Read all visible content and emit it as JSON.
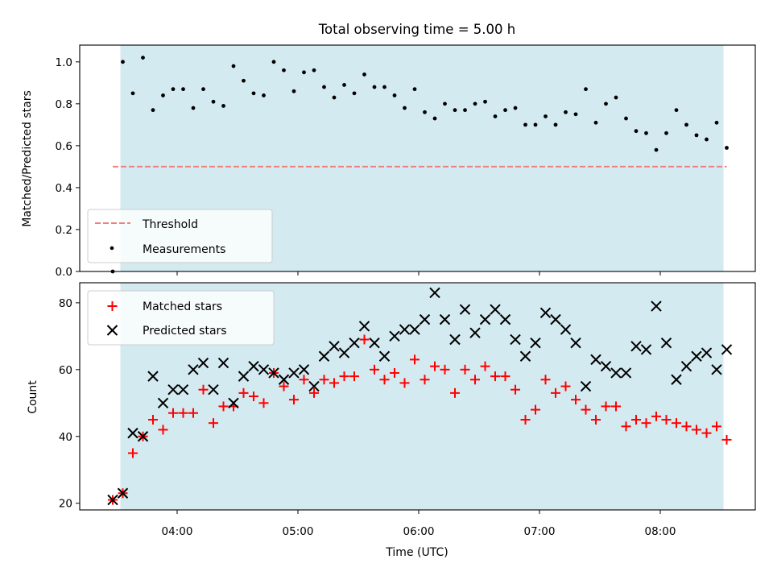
{
  "chart_data": [
    {
      "type": "scatter",
      "title": "Total observing time = 5.00 h",
      "ylabel": "Matched/Predicted stars",
      "xlabel": "",
      "ylim": [
        0,
        1.08
      ],
      "yticks": [
        "0.0",
        "0.2",
        "0.4",
        "0.6",
        "0.8",
        "1.0"
      ],
      "shaded_span": [
        "03:33",
        "08:33"
      ],
      "shade_color": "#d3eaf1",
      "threshold": {
        "name": "Threshold",
        "value": 0.5,
        "color": "#f08080"
      },
      "series": [
        {
          "name": "Measurements",
          "color": "#000000",
          "x": [
            "03:28",
            "03:33",
            "03:38",
            "03:43",
            "03:48",
            "03:53",
            "03:58",
            "04:03",
            "04:08",
            "04:13",
            "04:18",
            "04:23",
            "04:28",
            "04:33",
            "04:38",
            "04:43",
            "04:48",
            "04:53",
            "04:58",
            "05:03",
            "05:08",
            "05:13",
            "05:18",
            "05:23",
            "05:28",
            "05:33",
            "05:38",
            "05:43",
            "05:48",
            "05:53",
            "05:58",
            "06:03",
            "06:08",
            "06:13",
            "06:18",
            "06:23",
            "06:28",
            "06:33",
            "06:38",
            "06:43",
            "06:48",
            "06:53",
            "06:58",
            "07:03",
            "07:08",
            "07:13",
            "07:18",
            "07:23",
            "07:28",
            "07:33",
            "07:38",
            "07:43",
            "07:48",
            "07:53",
            "07:58",
            "08:03",
            "08:08",
            "08:13",
            "08:18",
            "08:23",
            "08:28",
            "08:33"
          ],
          "y": [
            0.0,
            1.0,
            0.85,
            1.02,
            0.77,
            0.84,
            0.87,
            0.87,
            0.78,
            0.87,
            0.81,
            0.79,
            0.98,
            0.91,
            0.85,
            0.84,
            1.0,
            0.96,
            0.86,
            0.95,
            0.96,
            0.88,
            0.83,
            0.89,
            0.85,
            0.94,
            0.88,
            0.88,
            0.84,
            0.78,
            0.87,
            0.76,
            0.73,
            0.8,
            0.77,
            0.77,
            0.8,
            0.81,
            0.74,
            0.77,
            0.78,
            0.7,
            0.7,
            0.74,
            0.7,
            0.76,
            0.75,
            0.87,
            0.71,
            0.8,
            0.83,
            0.73,
            0.67,
            0.66,
            0.58,
            0.66,
            0.77,
            0.7,
            0.65,
            0.63,
            0.71,
            0.59
          ]
        }
      ],
      "legend": "lower-left"
    },
    {
      "type": "scatter",
      "title": "",
      "xlabel": "Time (UTC)",
      "ylabel": "Count",
      "ylim": [
        18,
        86
      ],
      "yticks": [
        "20",
        "40",
        "60",
        "80"
      ],
      "xticks": [
        "04:00",
        "05:00",
        "06:00",
        "07:00",
        "08:00"
      ],
      "xlim": [
        "03:12",
        "08:48"
      ],
      "shaded_span": [
        "03:33",
        "08:33"
      ],
      "shade_color": "#d3eaf1",
      "x": [
        "03:28",
        "03:33",
        "03:38",
        "03:43",
        "03:48",
        "03:53",
        "03:58",
        "04:03",
        "04:08",
        "04:13",
        "04:18",
        "04:23",
        "04:28",
        "04:33",
        "04:38",
        "04:43",
        "04:48",
        "04:53",
        "04:58",
        "05:03",
        "05:08",
        "05:13",
        "05:18",
        "05:23",
        "05:28",
        "05:33",
        "05:38",
        "05:43",
        "05:48",
        "05:53",
        "05:58",
        "06:03",
        "06:08",
        "06:13",
        "06:18",
        "06:23",
        "06:28",
        "06:33",
        "06:38",
        "06:43",
        "06:48",
        "06:53",
        "06:58",
        "07:03",
        "07:08",
        "07:13",
        "07:18",
        "07:23",
        "07:28",
        "07:33",
        "07:38",
        "07:43",
        "07:48",
        "07:53",
        "07:58",
        "08:03",
        "08:08",
        "08:13",
        "08:18",
        "08:23",
        "08:28",
        "08:33"
      ],
      "series": [
        {
          "name": "Matched stars",
          "marker": "plus",
          "color": "#ff0000",
          "values": [
            21,
            23,
            35,
            40,
            45,
            42,
            47,
            47,
            47,
            54,
            44,
            49,
            49,
            53,
            52,
            50,
            59,
            55,
            51,
            57,
            53,
            57,
            56,
            58,
            58,
            69,
            60,
            57,
            59,
            56,
            63,
            57,
            61,
            60,
            53,
            60,
            57,
            61,
            58,
            58,
            54,
            45,
            48,
            57,
            53,
            55,
            51,
            48,
            45,
            49,
            49,
            43,
            45,
            44,
            46,
            45,
            44,
            43,
            42,
            41,
            43,
            39
          ]
        },
        {
          "name": "Predicted stars",
          "marker": "x",
          "color": "#000000",
          "values": [
            21,
            23,
            41,
            40,
            58,
            50,
            54,
            54,
            60,
            62,
            54,
            62,
            50,
            58,
            61,
            60,
            59,
            57,
            59,
            60,
            55,
            64,
            67,
            65,
            68,
            73,
            68,
            64,
            70,
            72,
            72,
            75,
            83,
            75,
            69,
            78,
            71,
            75,
            78,
            75,
            69,
            64,
            68,
            77,
            75,
            72,
            68,
            55,
            63,
            61,
            59,
            59,
            67,
            66,
            79,
            68,
            57,
            61,
            64,
            65,
            60,
            66
          ]
        }
      ],
      "legend": "upper-left"
    }
  ]
}
